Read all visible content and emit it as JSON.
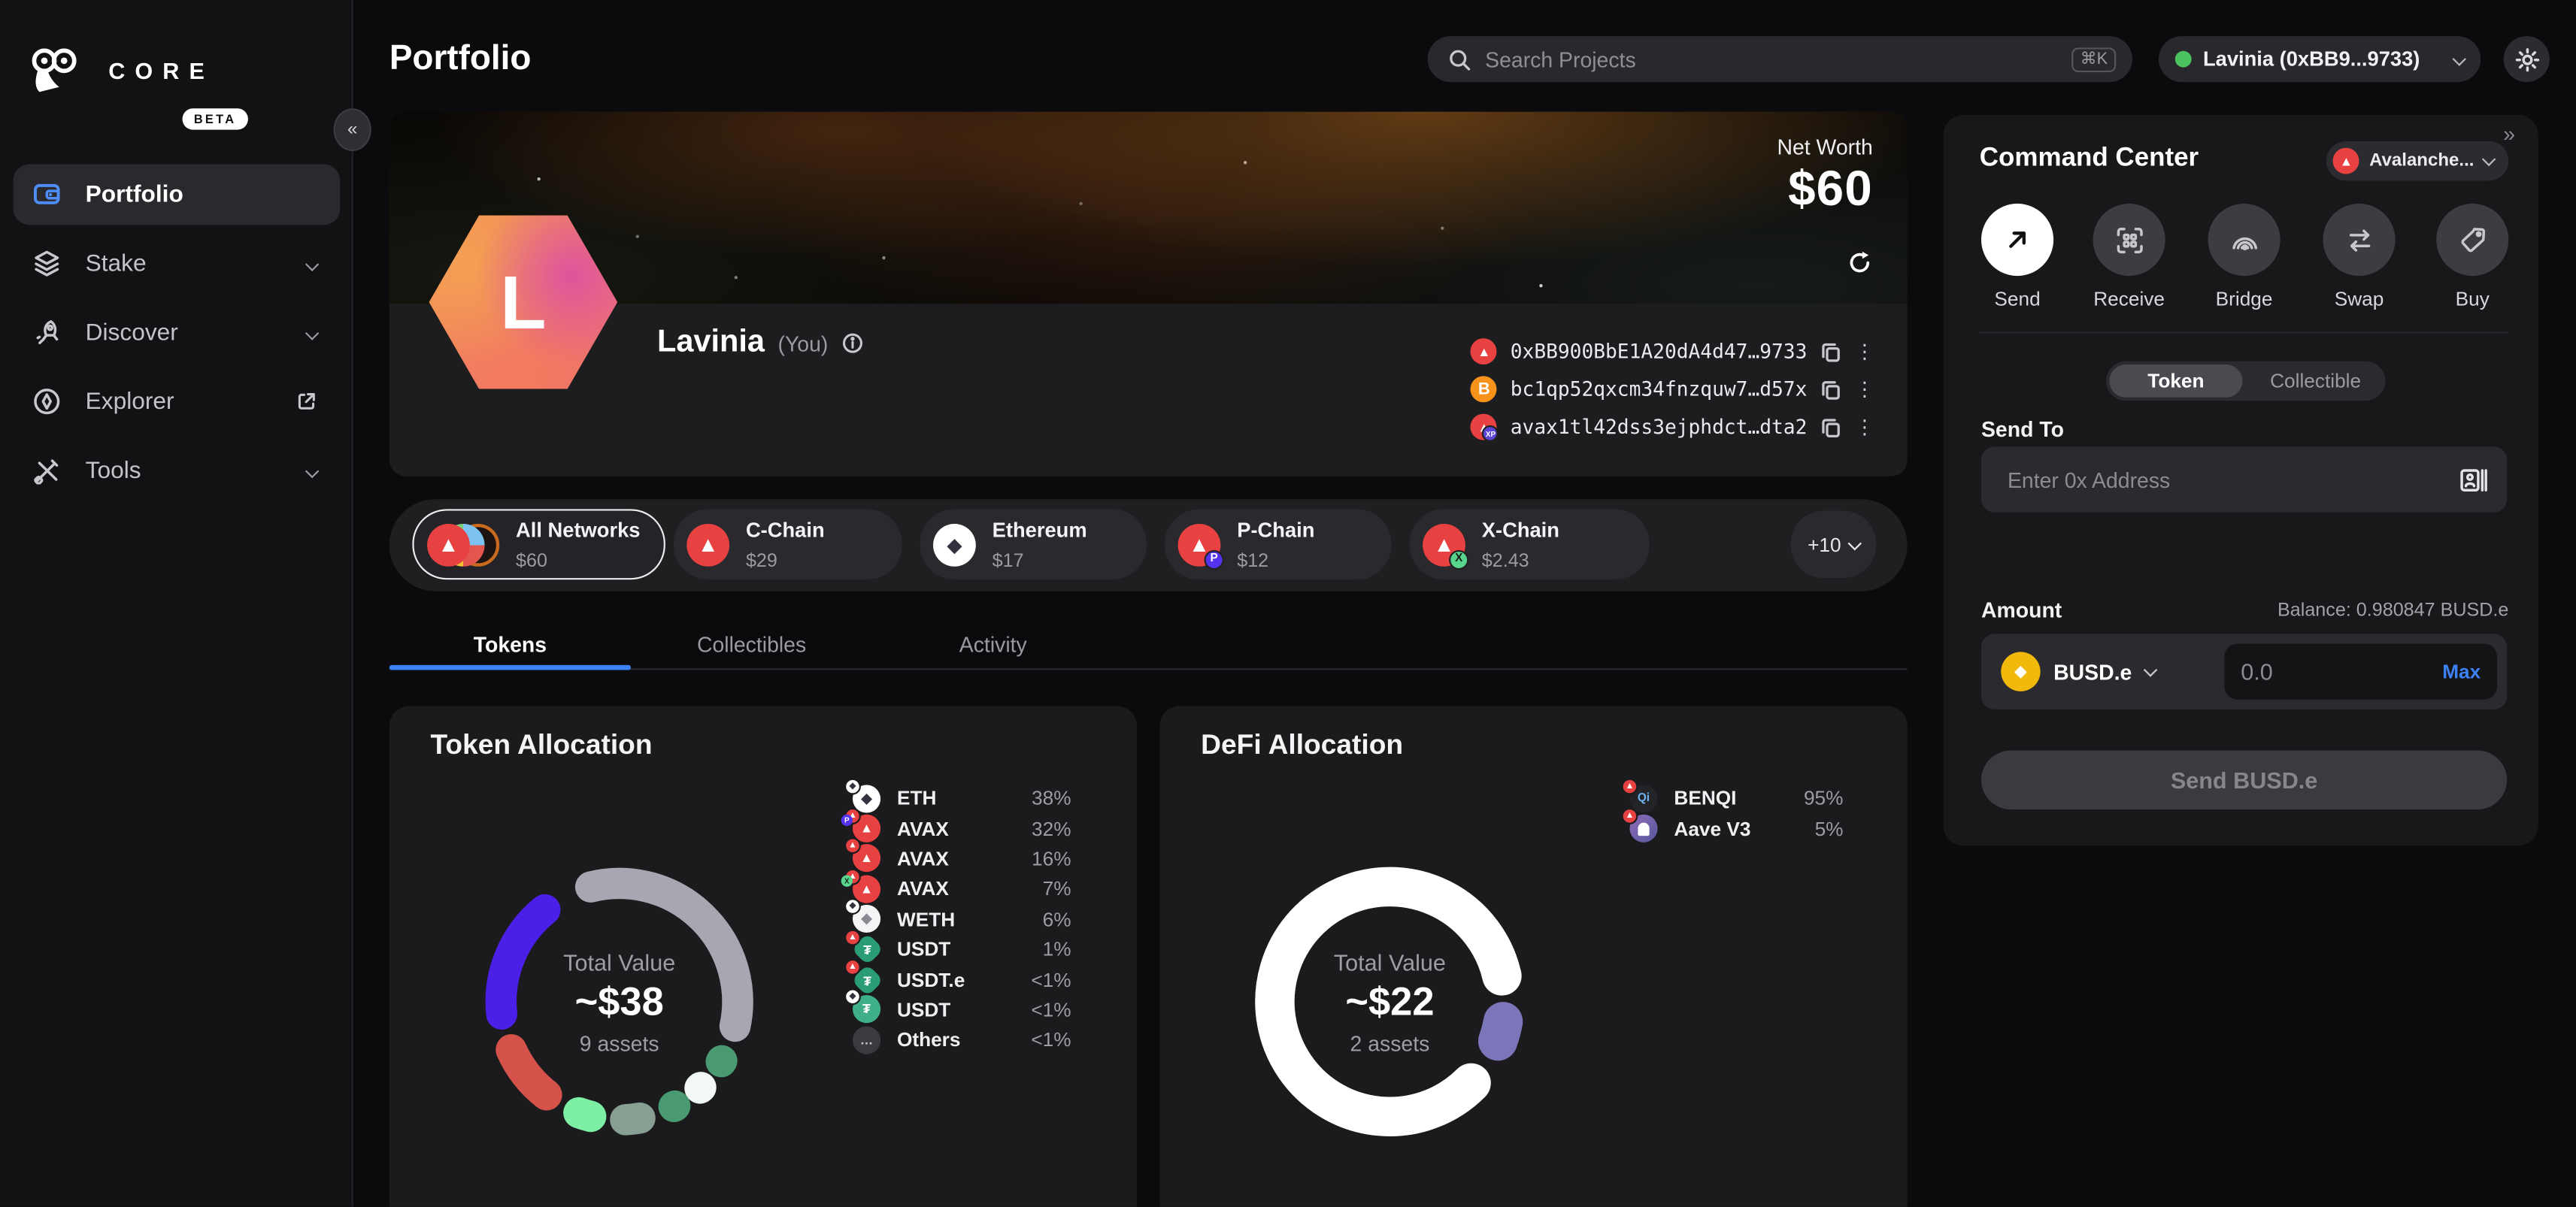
{
  "app": {
    "brand": "CORE",
    "beta_label": "BETA",
    "collapse_icon": "«",
    "panel_collapse_icon": "»"
  },
  "icons": {
    "kebab": "⋮"
  },
  "colors": {
    "accent_blue": "#3b82f6",
    "avax_red": "#e84142",
    "bitcoin_orange": "#f7931a",
    "busd_yellow": "#f0b90b",
    "online_green": "#4cc35e",
    "aave_purple": "#7b75b9",
    "tether_teal": "#2a9d77",
    "card_bg": "#1b1b1e",
    "page_bg": "#0b0b0d"
  },
  "sidebar": {
    "items": [
      {
        "label": "Portfolio",
        "active": true
      },
      {
        "label": "Stake"
      },
      {
        "label": "Discover"
      },
      {
        "label": "Explorer"
      },
      {
        "label": "Tools"
      }
    ]
  },
  "header": {
    "title": "Portfolio",
    "search_placeholder": "Search Projects",
    "search_shortcut": "⌘K",
    "account_label": "Lavinia (0xBB9...9733)"
  },
  "hero": {
    "net_worth_label": "Net Worth",
    "net_worth_value": "$60",
    "avatar_letter": "L",
    "name": "Lavinia",
    "you_label": "(You)",
    "addresses": [
      {
        "chain": "avalanche-c",
        "text": "0xBB900BbE1A20dA4d47…9733"
      },
      {
        "chain": "bitcoin",
        "text": "bc1qp52qxcm34fnzquw7…d57x"
      },
      {
        "chain": "avalanche-x",
        "text": "avax1tl42dss3ejphdct…dta2"
      }
    ]
  },
  "networks": {
    "chips": [
      {
        "name": "All Networks",
        "value": "$60",
        "selected": true
      },
      {
        "name": "C-Chain",
        "value": "$29"
      },
      {
        "name": "Ethereum",
        "value": "$17"
      },
      {
        "name": "P-Chain",
        "value": "$12"
      },
      {
        "name": "X-Chain",
        "value": "$2.43"
      }
    ],
    "more_label": "+10"
  },
  "tabs": {
    "items": [
      "Tokens",
      "Collectibles",
      "Activity"
    ],
    "active": "Tokens"
  },
  "chart_data": [
    {
      "type": "donut",
      "title": "Token Allocation",
      "center": {
        "label": "Total Value",
        "value": "~$38",
        "sub": "9 assets"
      },
      "ring": {
        "radius": 72,
        "stroke": 19
      },
      "legend": [
        {
          "label": "ETH",
          "pct": "38%",
          "icon": "eth",
          "badge": "eth"
        },
        {
          "label": "AVAX",
          "pct": "32%",
          "icon": "avax",
          "badge": "avax-p"
        },
        {
          "label": "AVAX",
          "pct": "16%",
          "icon": "avax",
          "badge": "avax"
        },
        {
          "label": "AVAX",
          "pct": "7%",
          "icon": "avax",
          "badge": "avax-x"
        },
        {
          "label": "WETH",
          "pct": "6%",
          "icon": "weth",
          "badge": "eth"
        },
        {
          "label": "USDT",
          "pct": "1%",
          "icon": "usdt-shield",
          "badge": "avax"
        },
        {
          "label": "USDT.e",
          "pct": "<1%",
          "icon": "usdt-shield",
          "badge": "avax"
        },
        {
          "label": "USDT",
          "pct": "<1%",
          "icon": "usdt-green",
          "badge": "eth"
        },
        {
          "label": "Others",
          "pct": "<1%",
          "icon": "others",
          "badge": ""
        }
      ],
      "arcs": [
        {
          "name": "ETH 38%",
          "color": "#a9a5b1",
          "start": 346,
          "end": 462
        },
        {
          "name": "USDT 1%",
          "color": "#4a9a71",
          "start": 120,
          "end": 120.5
        },
        {
          "name": "USDT.e",
          "color": "#f2f8f4",
          "start": 136.5,
          "end": 137
        },
        {
          "name": "USDT <1%",
          "color": "#4a9a71",
          "start": 152,
          "end": 152.5
        },
        {
          "name": "WETH 6%",
          "color": "#87a093",
          "start": 170,
          "end": 177
        },
        {
          "name": "AVAX 7%",
          "color": "#7df0a4",
          "start": 194,
          "end": 200
        },
        {
          "name": "AVAX 16%",
          "color": "#d5524a",
          "start": 218,
          "end": 246
        },
        {
          "name": "AVAX 32%",
          "color": "#4a1fe8",
          "start": 264,
          "end": 321
        }
      ]
    },
    {
      "type": "donut",
      "title": "DeFi Allocation",
      "center": {
        "label": "Total Value",
        "value": "~$22",
        "sub": "2 assets"
      },
      "ring": {
        "radius": 70,
        "stroke": 24
      },
      "legend": [
        {
          "label": "BENQI",
          "pct": "95%",
          "icon": "benqi",
          "badge": "avax"
        },
        {
          "label": "Aave V3",
          "pct": "5%",
          "icon": "aave",
          "badge": "avax"
        }
      ],
      "arcs": [
        {
          "name": "BENQI 95%",
          "color": "#ffffff",
          "start": 135,
          "end": 437
        },
        {
          "name": "Aave V3 5%",
          "color": "#7b75b9",
          "start": 100,
          "end": 110
        }
      ]
    }
  ],
  "command_center": {
    "title": "Command Center",
    "network_label": "Avalanche...",
    "actions": [
      "Send",
      "Receive",
      "Bridge",
      "Swap",
      "Buy"
    ],
    "toggle": [
      "Token",
      "Collectible"
    ],
    "send_to_label": "Send To",
    "address_placeholder": "Enter 0x Address",
    "amount_label": "Amount",
    "balance_label": "Balance: 0.980847 BUSD.e",
    "token_symbol": "BUSD.e",
    "amount_placeholder": "0.0",
    "max_label": "Max",
    "submit_label": "Send BUSD.e"
  }
}
